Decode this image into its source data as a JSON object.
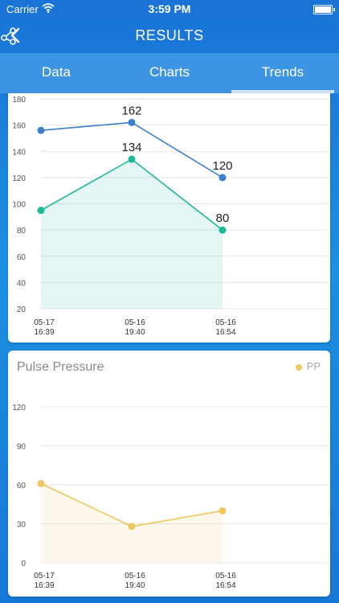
{
  "status": {
    "carrier": "Carrier",
    "time": "3:59 PM"
  },
  "nav": {
    "title": "RESULTS"
  },
  "tabs": [
    {
      "label": "Data",
      "active": false
    },
    {
      "label": "Charts",
      "active": false
    },
    {
      "label": "Trends",
      "active": true
    }
  ],
  "colors": {
    "systolic": "#3a7fcc",
    "diastolic": "#1cb89a",
    "pp": "#f0c75e"
  },
  "chart_data": [
    {
      "type": "line",
      "title": "",
      "categories": [
        "05-17\n16:39",
        "05-16\n19:40",
        "05-16\n16:54"
      ],
      "ylim": [
        20,
        180
      ],
      "yticks": [
        20,
        40,
        60,
        80,
        100,
        120,
        140,
        160,
        180
      ],
      "grid": true,
      "series": [
        {
          "values": [
            156,
            162,
            120
          ],
          "labels": [
            "",
            "162",
            "120"
          ],
          "color": "#3a7fcc",
          "fill": false
        },
        {
          "values": [
            95,
            134,
            80
          ],
          "labels": [
            "",
            "134",
            "80"
          ],
          "color": "#1cb89a",
          "fill": true
        }
      ]
    },
    {
      "type": "line",
      "title": "Pulse Pressure",
      "categories": [
        "05-17\n16:39",
        "05-16\n19:40",
        "05-16\n16:54"
      ],
      "ylim": [
        0,
        120
      ],
      "yticks": [
        0,
        30,
        60,
        90,
        120
      ],
      "grid": true,
      "legend": "top-right",
      "series": [
        {
          "name": "PP",
          "values": [
            61,
            28,
            40
          ],
          "labels": [
            "",
            "",
            ""
          ],
          "color": "#f0c75e",
          "fill": true
        }
      ]
    }
  ]
}
